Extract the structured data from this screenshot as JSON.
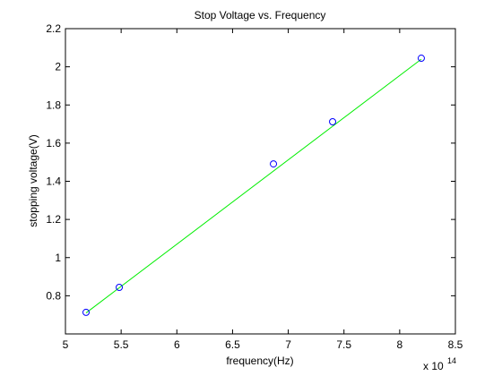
{
  "chart_data": {
    "type": "scatter",
    "title": "Stop Voltage vs. Frequency",
    "xlabel": "frequency(Hz)",
    "ylabel": "stopping voltage(V)",
    "x_scale_label": "x 10",
    "x_scale_exponent": "14",
    "xlim": [
      5,
      8.5
    ],
    "xticks": [
      5,
      5.5,
      6,
      6.5,
      7,
      7.5,
      8,
      8.5
    ],
    "ylim": [
      0.6,
      2.2
    ],
    "yticks": [
      0.8,
      1,
      1.2,
      1.4,
      1.6,
      1.8,
      2,
      2.2
    ],
    "series": [
      {
        "style": "markers",
        "color": "#0000ff",
        "x": [
          5.185,
          5.483,
          6.867,
          7.398,
          8.194
        ],
        "values": [
          0.713,
          0.844,
          1.491,
          1.712,
          2.045
        ]
      },
      {
        "style": "line",
        "color": "#00ee00",
        "x": [
          5.185,
          8.194
        ],
        "values": [
          0.71,
          2.04
        ]
      }
    ]
  }
}
